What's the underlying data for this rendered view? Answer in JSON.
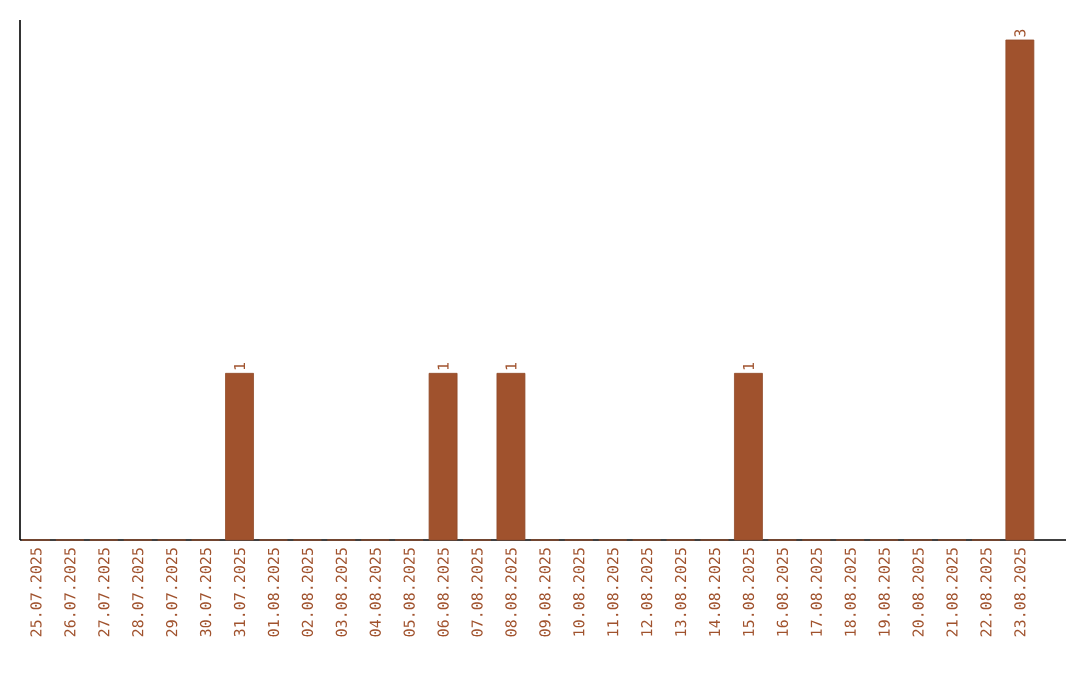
{
  "chart_data": {
    "type": "bar",
    "categories": [
      "25.07.2025",
      "26.07.2025",
      "27.07.2025",
      "28.07.2025",
      "29.07.2025",
      "30.07.2025",
      "31.07.2025",
      "01.08.2025",
      "02.08.2025",
      "03.08.2025",
      "04.08.2025",
      "05.08.2025",
      "06.08.2025",
      "07.08.2025",
      "08.08.2025",
      "09.08.2025",
      "10.08.2025",
      "11.08.2025",
      "12.08.2025",
      "13.08.2025",
      "14.08.2025",
      "15.08.2025",
      "16.08.2025",
      "17.08.2025",
      "18.08.2025",
      "19.08.2025",
      "20.08.2025",
      "21.08.2025",
      "22.08.2025",
      "23.08.2025"
    ],
    "values": [
      0,
      0,
      0,
      0,
      0,
      0,
      1,
      0,
      0,
      0,
      0,
      0,
      1,
      0,
      1,
      0,
      0,
      0,
      0,
      0,
      0,
      1,
      0,
      0,
      0,
      0,
      0,
      0,
      0,
      3
    ],
    "value_labels": [
      null,
      null,
      null,
      null,
      null,
      null,
      "1",
      null,
      null,
      null,
      null,
      null,
      "1",
      null,
      "1",
      null,
      null,
      null,
      null,
      null,
      null,
      "1",
      null,
      null,
      null,
      null,
      null,
      null,
      null,
      "3"
    ],
    "color": "#a0522d",
    "ylim": [
      0,
      3.12
    ],
    "tick_labels": "x"
  }
}
